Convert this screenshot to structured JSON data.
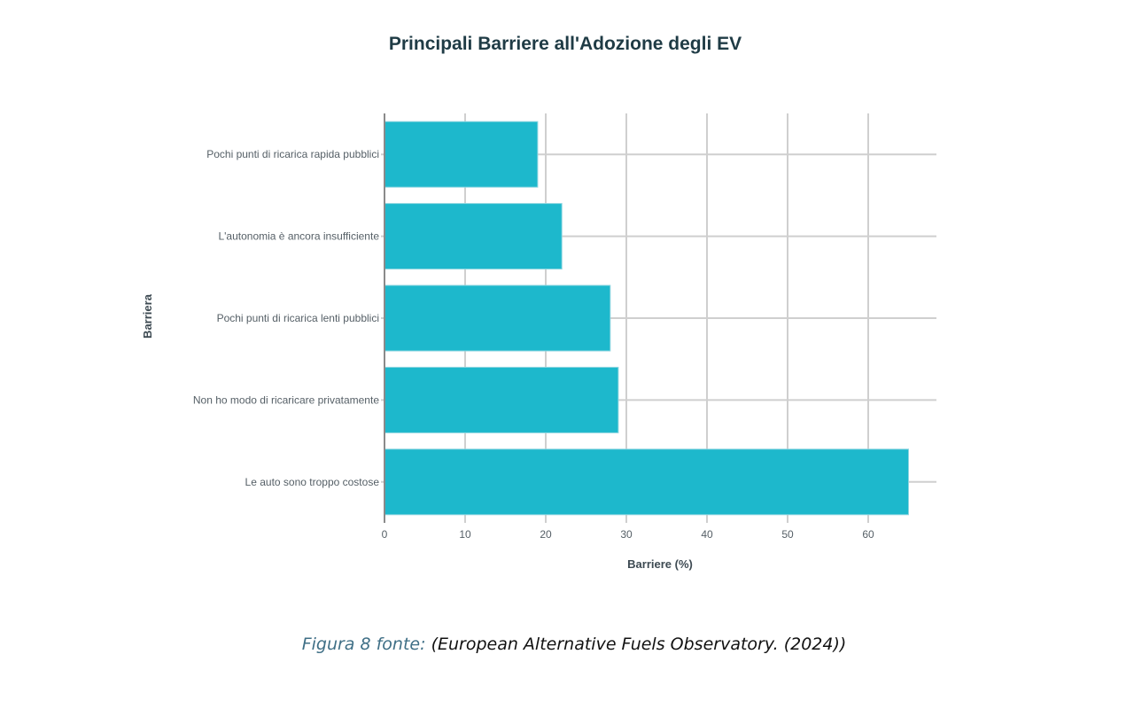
{
  "chart_data": {
    "type": "bar",
    "orientation": "horizontal",
    "title": "Principali Barriere all'Adozione degli EV",
    "xlabel": "Barriere (%)",
    "ylabel": "Barriera",
    "categories": [
      "Pochi punti di ricarica rapida pubblici",
      "L'autonomia è ancora insufficiente",
      "Pochi punti di ricarica lenti pubblici",
      "Non ho modo di ricaricare privatamente",
      "Le auto sono troppo costose"
    ],
    "values": [
      19,
      22,
      28,
      29,
      65
    ],
    "xlim": [
      0,
      68
    ],
    "xticks": [
      0,
      10,
      20,
      30,
      40,
      50,
      60
    ],
    "grid": true,
    "bar_color": "#1db8cc"
  },
  "caption": {
    "prefix": "Figura 8 fonte:",
    "source": "(European Alternative Fuels Observatory. (2024))"
  }
}
